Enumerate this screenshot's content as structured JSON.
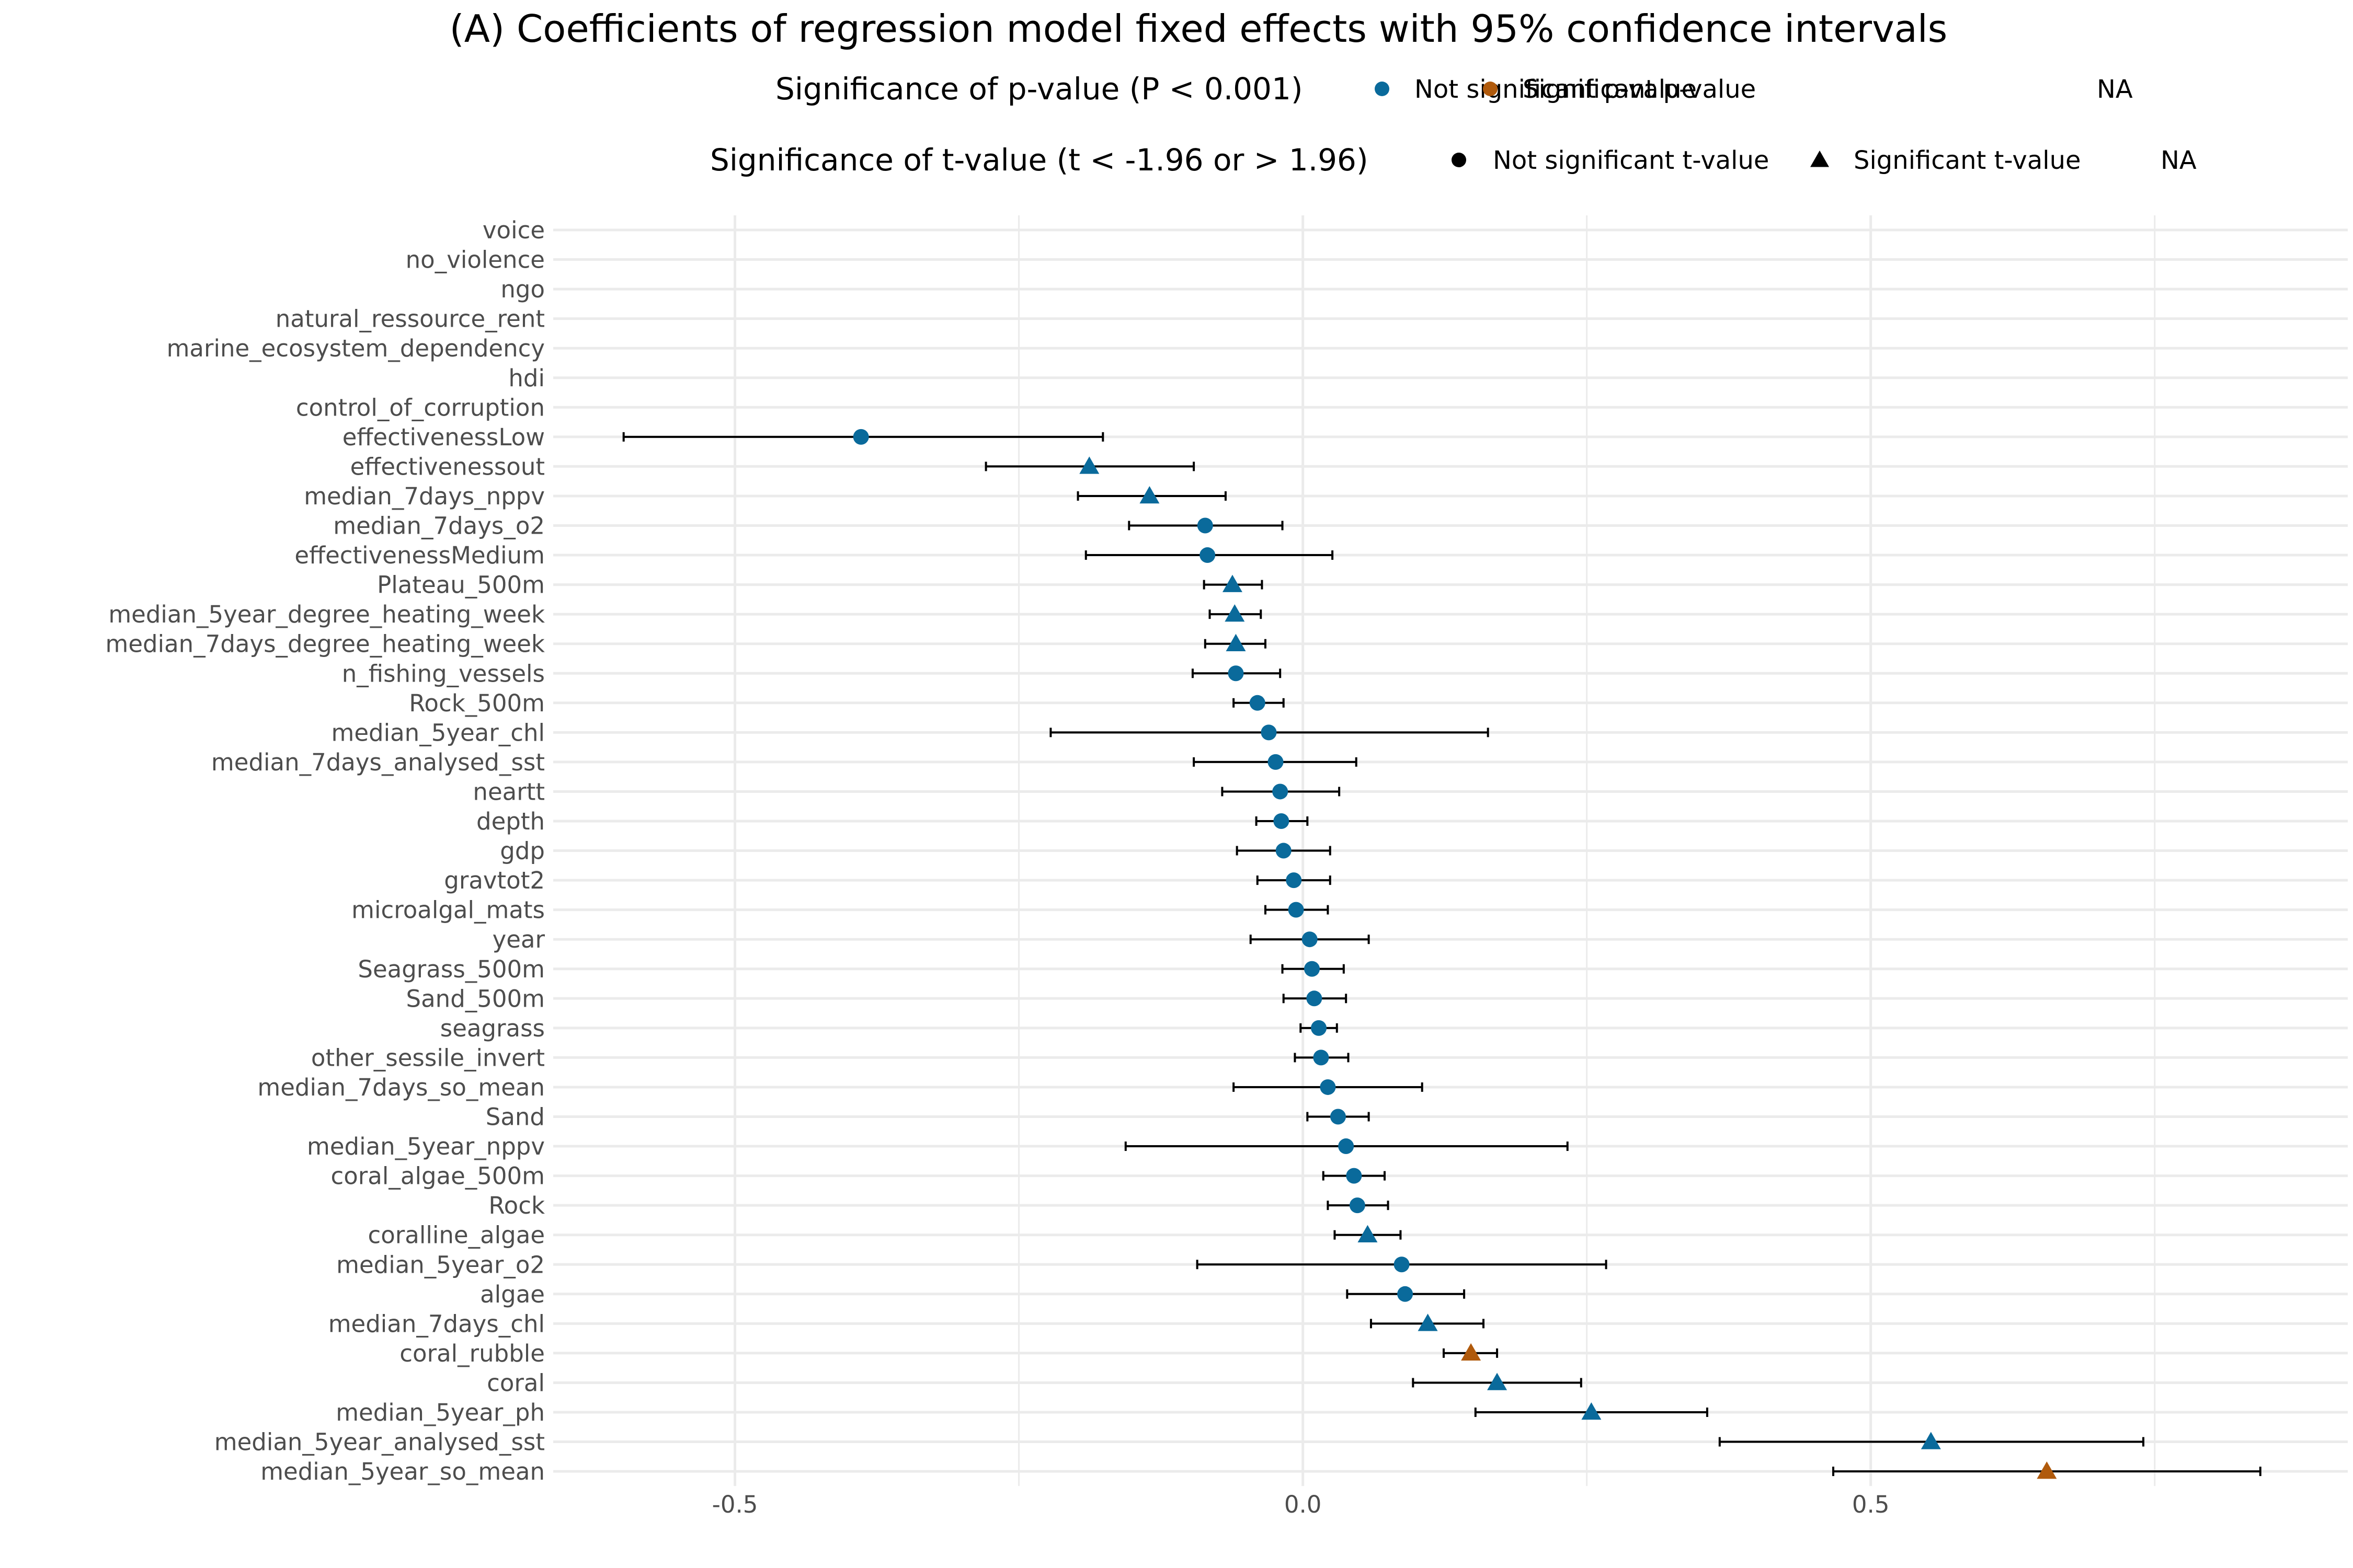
{
  "chart_data": {
    "type": "scatter",
    "title": "(A) Coefficients of regression model fixed effects with 95% confidence intervals",
    "xlabel": "",
    "ylabel": "",
    "xlim": [
      -0.66,
      0.92
    ],
    "x_ticks": [
      -0.5,
      0.0,
      0.5
    ],
    "x_tick_labels": [
      "-0.5",
      "0.0",
      "0.5"
    ],
    "grid": true,
    "legend_position": "top",
    "legends": [
      {
        "title": "Significance of p-value (P < 0.001)",
        "entries": [
          {
            "label": "Not significant p-value",
            "symbol": "circle",
            "color": "#0a6a9b"
          },
          {
            "label": "Significant p-value",
            "symbol": "circle",
            "color": "#b05a0c"
          },
          {
            "label": "NA",
            "symbol": "none",
            "color": ""
          }
        ]
      },
      {
        "title": "Significance of t-value (t < -1.96 or > 1.96)",
        "entries": [
          {
            "label": "Not significant t-value",
            "symbol": "circle",
            "color": "#000000"
          },
          {
            "label": "Significant t-value",
            "symbol": "triangle",
            "color": "#000000"
          },
          {
            "label": "NA",
            "symbol": "none",
            "color": ""
          }
        ]
      }
    ],
    "colors": {
      "not_significant_p": "#0a6a9b",
      "significant_p": "#b05a0c"
    },
    "points": [
      {
        "term": "voice",
        "estimate": null,
        "ci_low": null,
        "ci_high": null,
        "p_significance": "NA",
        "t_significance": "NA"
      },
      {
        "term": "no_violence",
        "estimate": null,
        "ci_low": null,
        "ci_high": null,
        "p_significance": "NA",
        "t_significance": "NA"
      },
      {
        "term": "ngo",
        "estimate": null,
        "ci_low": null,
        "ci_high": null,
        "p_significance": "NA",
        "t_significance": "NA"
      },
      {
        "term": "natural_ressource_rent",
        "estimate": null,
        "ci_low": null,
        "ci_high": null,
        "p_significance": "NA",
        "t_significance": "NA"
      },
      {
        "term": "marine_ecosystem_dependency",
        "estimate": null,
        "ci_low": null,
        "ci_high": null,
        "p_significance": "NA",
        "t_significance": "NA"
      },
      {
        "term": "hdi",
        "estimate": null,
        "ci_low": null,
        "ci_high": null,
        "p_significance": "NA",
        "t_significance": "NA"
      },
      {
        "term": "control_of_corruption",
        "estimate": null,
        "ci_low": null,
        "ci_high": null,
        "p_significance": "NA",
        "t_significance": "NA"
      },
      {
        "term": "effectivenessLow",
        "estimate": -0.389,
        "ci_low": -0.598,
        "ci_high": -0.176,
        "p_significance": "Not significant p-value",
        "t_significance": "Not significant t-value"
      },
      {
        "term": "effectivenessout",
        "estimate": -0.188,
        "ci_low": -0.279,
        "ci_high": -0.096,
        "p_significance": "Not significant p-value",
        "t_significance": "Significant t-value"
      },
      {
        "term": "median_7days_nppv",
        "estimate": -0.135,
        "ci_low": -0.198,
        "ci_high": -0.068,
        "p_significance": "Not significant p-value",
        "t_significance": "Significant t-value"
      },
      {
        "term": "median_7days_o2",
        "estimate": -0.086,
        "ci_low": -0.153,
        "ci_high": -0.018,
        "p_significance": "Not significant p-value",
        "t_significance": "Not significant t-value"
      },
      {
        "term": "effectivenessMedium",
        "estimate": -0.084,
        "ci_low": -0.191,
        "ci_high": 0.026,
        "p_significance": "Not significant p-value",
        "t_significance": "Not significant t-value"
      },
      {
        "term": "Plateau_500m",
        "estimate": -0.062,
        "ci_low": -0.087,
        "ci_high": -0.036,
        "p_significance": "Not significant p-value",
        "t_significance": "Significant t-value"
      },
      {
        "term": "median_5year_degree_heating_week",
        "estimate": -0.06,
        "ci_low": -0.082,
        "ci_high": -0.037,
        "p_significance": "Not significant p-value",
        "t_significance": "Significant t-value"
      },
      {
        "term": "median_7days_degree_heating_week",
        "estimate": -0.059,
        "ci_low": -0.086,
        "ci_high": -0.033,
        "p_significance": "Not significant p-value",
        "t_significance": "Significant t-value"
      },
      {
        "term": "n_fishing_vessels",
        "estimate": -0.059,
        "ci_low": -0.097,
        "ci_high": -0.02,
        "p_significance": "Not significant p-value",
        "t_significance": "Not significant t-value"
      },
      {
        "term": "Rock_500m",
        "estimate": -0.04,
        "ci_low": -0.061,
        "ci_high": -0.017,
        "p_significance": "Not significant p-value",
        "t_significance": "Not significant t-value"
      },
      {
        "term": "median_5year_chl",
        "estimate": -0.03,
        "ci_low": -0.222,
        "ci_high": 0.163,
        "p_significance": "Not significant p-value",
        "t_significance": "Not significant t-value"
      },
      {
        "term": "median_7days_analysed_sst",
        "estimate": -0.024,
        "ci_low": -0.096,
        "ci_high": 0.047,
        "p_significance": "Not significant p-value",
        "t_significance": "Not significant t-value"
      },
      {
        "term": "neartt",
        "estimate": -0.02,
        "ci_low": -0.071,
        "ci_high": 0.032,
        "p_significance": "Not significant p-value",
        "t_significance": "Not significant t-value"
      },
      {
        "term": "depth",
        "estimate": -0.019,
        "ci_low": -0.041,
        "ci_high": 0.004,
        "p_significance": "Not significant p-value",
        "t_significance": "Not significant t-value"
      },
      {
        "term": "gdp",
        "estimate": -0.017,
        "ci_low": -0.058,
        "ci_high": 0.024,
        "p_significance": "Not significant p-value",
        "t_significance": "Not significant t-value"
      },
      {
        "term": "gravtot2",
        "estimate": -0.008,
        "ci_low": -0.04,
        "ci_high": 0.024,
        "p_significance": "Not significant p-value",
        "t_significance": "Not significant t-value"
      },
      {
        "term": "microalgal_mats",
        "estimate": -0.006,
        "ci_low": -0.033,
        "ci_high": 0.022,
        "p_significance": "Not significant p-value",
        "t_significance": "Not significant t-value"
      },
      {
        "term": "year",
        "estimate": 0.006,
        "ci_low": -0.046,
        "ci_high": 0.058,
        "p_significance": "Not significant p-value",
        "t_significance": "Not significant t-value"
      },
      {
        "term": "Seagrass_500m",
        "estimate": 0.008,
        "ci_low": -0.018,
        "ci_high": 0.036,
        "p_significance": "Not significant p-value",
        "t_significance": "Not significant t-value"
      },
      {
        "term": "Sand_500m",
        "estimate": 0.01,
        "ci_low": -0.017,
        "ci_high": 0.038,
        "p_significance": "Not significant p-value",
        "t_significance": "Not significant t-value"
      },
      {
        "term": "seagrass",
        "estimate": 0.014,
        "ci_low": -0.002,
        "ci_high": 0.03,
        "p_significance": "Not significant p-value",
        "t_significance": "Not significant t-value"
      },
      {
        "term": "other_sessile_invert",
        "estimate": 0.016,
        "ci_low": -0.007,
        "ci_high": 0.04,
        "p_significance": "Not significant p-value",
        "t_significance": "Not significant t-value"
      },
      {
        "term": "median_7days_so_mean",
        "estimate": 0.022,
        "ci_low": -0.061,
        "ci_high": 0.105,
        "p_significance": "Not significant p-value",
        "t_significance": "Not significant t-value"
      },
      {
        "term": "Sand",
        "estimate": 0.031,
        "ci_low": 0.004,
        "ci_high": 0.058,
        "p_significance": "Not significant p-value",
        "t_significance": "Not significant t-value"
      },
      {
        "term": "median_5year_nppv",
        "estimate": 0.038,
        "ci_low": -0.156,
        "ci_high": 0.233,
        "p_significance": "Not significant p-value",
        "t_significance": "Not significant t-value"
      },
      {
        "term": "coral_algae_500m",
        "estimate": 0.045,
        "ci_low": 0.018,
        "ci_high": 0.072,
        "p_significance": "Not significant p-value",
        "t_significance": "Not significant t-value"
      },
      {
        "term": "Rock",
        "estimate": 0.048,
        "ci_low": 0.022,
        "ci_high": 0.075,
        "p_significance": "Not significant p-value",
        "t_significance": "Not significant t-value"
      },
      {
        "term": "coralline_algae",
        "estimate": 0.057,
        "ci_low": 0.028,
        "ci_high": 0.086,
        "p_significance": "Not significant p-value",
        "t_significance": "Significant t-value"
      },
      {
        "term": "median_5year_o2",
        "estimate": 0.087,
        "ci_low": -0.093,
        "ci_high": 0.267,
        "p_significance": "Not significant p-value",
        "t_significance": "Not significant t-value"
      },
      {
        "term": "algae",
        "estimate": 0.09,
        "ci_low": 0.039,
        "ci_high": 0.142,
        "p_significance": "Not significant p-value",
        "t_significance": "Not significant t-value"
      },
      {
        "term": "median_7days_chl",
        "estimate": 0.11,
        "ci_low": 0.06,
        "ci_high": 0.159,
        "p_significance": "Not significant p-value",
        "t_significance": "Significant t-value"
      },
      {
        "term": "coral_rubble",
        "estimate": 0.148,
        "ci_low": 0.124,
        "ci_high": 0.171,
        "p_significance": "Significant p-value",
        "t_significance": "Significant t-value"
      },
      {
        "term": "coral",
        "estimate": 0.171,
        "ci_low": 0.097,
        "ci_high": 0.245,
        "p_significance": "Not significant p-value",
        "t_significance": "Significant t-value"
      },
      {
        "term": "median_5year_ph",
        "estimate": 0.254,
        "ci_low": 0.152,
        "ci_high": 0.356,
        "p_significance": "Not significant p-value",
        "t_significance": "Significant t-value"
      },
      {
        "term": "median_5year_analysed_sst",
        "estimate": 0.553,
        "ci_low": 0.367,
        "ci_high": 0.74,
        "p_significance": "Not significant p-value",
        "t_significance": "Significant t-value"
      },
      {
        "term": "median_5year_so_mean",
        "estimate": 0.655,
        "ci_low": 0.467,
        "ci_high": 0.843,
        "p_significance": "Significant p-value",
        "t_significance": "Significant t-value"
      }
    ]
  }
}
